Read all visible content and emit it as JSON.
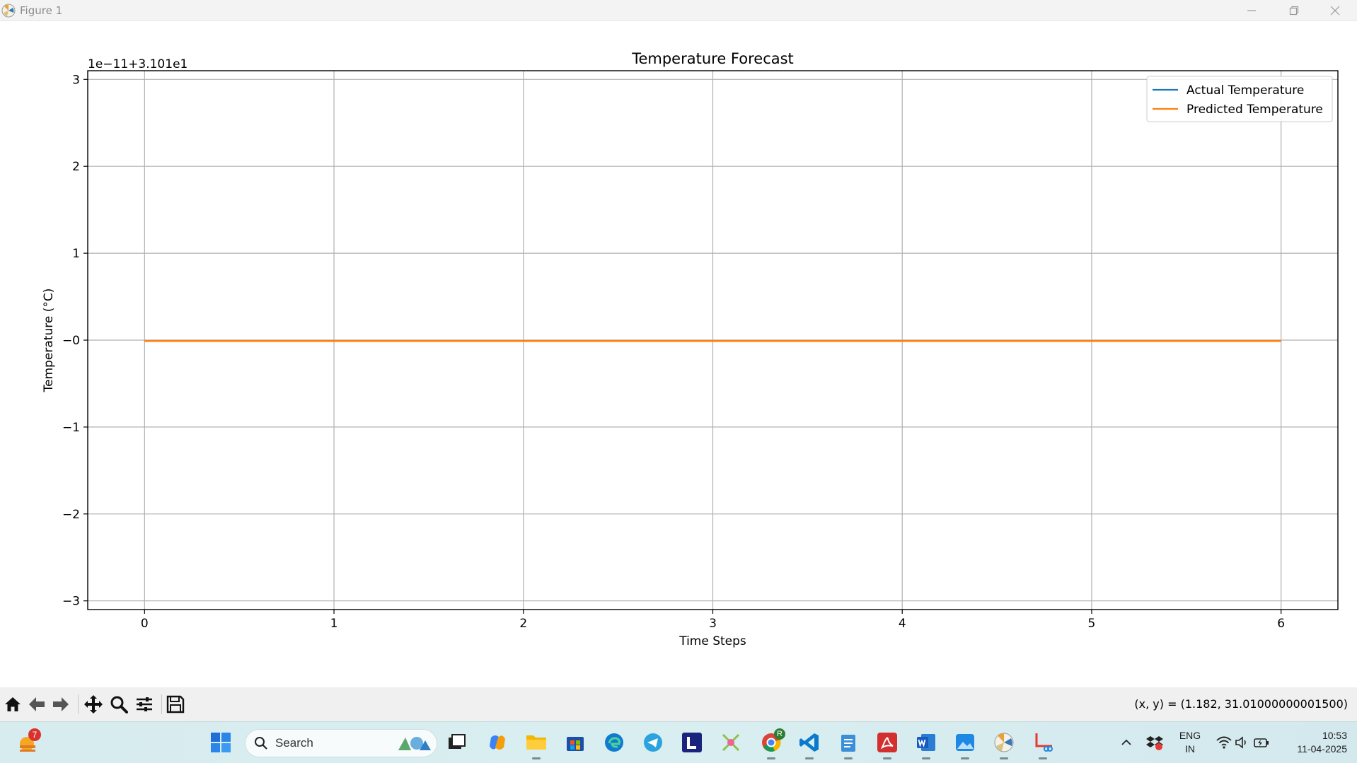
{
  "window": {
    "title": "Figure 1"
  },
  "chart_data": {
    "type": "line",
    "title": "Temperature Forecast",
    "xlabel": "Time Steps",
    "ylabel": "Temperature (°C)",
    "offset_text": "1e−11+3.101e1",
    "x": [
      0,
      1,
      2,
      3,
      4,
      5,
      6
    ],
    "xlim": [
      -0.3,
      6.3
    ],
    "ylim": [
      -3.1,
      3.1
    ],
    "xticks": [
      0,
      1,
      2,
      3,
      4,
      5,
      6
    ],
    "yticks": [
      3,
      2,
      1,
      0,
      -1,
      -2,
      -3
    ],
    "ytick_labels": [
      "3",
      "2",
      "1",
      "−0",
      "−1",
      "−2",
      "−3"
    ],
    "grid": true,
    "legend_position": "top-right",
    "series": [
      {
        "name": "Actual Temperature",
        "color": "#1f77b4",
        "values": [
          -0.01,
          -0.01,
          -0.01,
          -0.01,
          -0.01,
          -0.01,
          -0.01
        ]
      },
      {
        "name": "Predicted Temperature",
        "color": "#ff7f0e",
        "values": [
          -0.01,
          -0.01,
          -0.01,
          -0.01,
          -0.01,
          -0.01,
          -0.01
        ]
      }
    ]
  },
  "toolbar": {
    "coordinates": "(x, y) = (1.182, 31.01000000001500)",
    "buttons": [
      "home-icon",
      "back-icon",
      "forward-icon",
      "pan-icon",
      "zoom-icon",
      "configure-subplots-icon",
      "save-icon"
    ]
  },
  "taskbar": {
    "search_label": "Search",
    "weather_badge": "7",
    "chrome_badge": "R",
    "language": "ENG",
    "region": "IN",
    "time": "10:53",
    "date": "11-04-2025"
  }
}
